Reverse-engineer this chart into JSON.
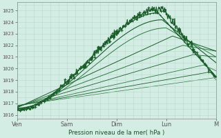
{
  "bg_color": "#d4ede4",
  "grid_color": "#b8d8cc",
  "line_color_dark": "#1a5c2a",
  "line_color_light": "#2d7a42",
  "xlabel": "Pression niveau de la mer( hPa )",
  "yticks": [
    1016,
    1017,
    1018,
    1019,
    1020,
    1021,
    1022,
    1023,
    1024,
    1025
  ],
  "xtick_labels": [
    "Ven",
    "Sam",
    "Dim",
    "Lun",
    "M"
  ],
  "ylim": [
    1015.7,
    1025.7
  ],
  "xlim": [
    0,
    96
  ],
  "xtick_positions": [
    0,
    24,
    48,
    72,
    96
  ]
}
